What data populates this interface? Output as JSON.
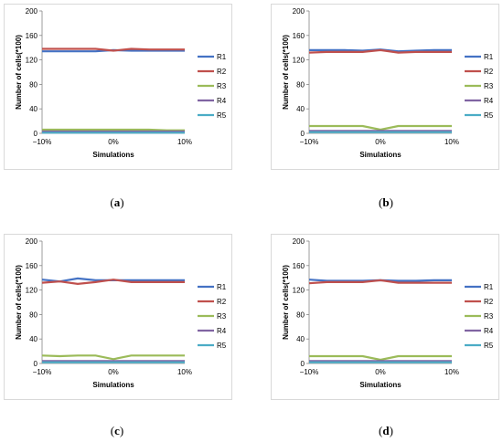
{
  "panels": [
    {
      "caption_letter": "a",
      "caption_open": "(",
      "caption_close": ")"
    },
    {
      "caption_letter": "b",
      "caption_open": "(",
      "caption_close": ")"
    },
    {
      "caption_letter": "c",
      "caption_open": "(",
      "caption_close": ")"
    },
    {
      "caption_letter": "d",
      "caption_open": "(",
      "caption_close": ")"
    }
  ],
  "chart_data": [
    {
      "type": "line",
      "title": "",
      "xlabel": "Simulations",
      "ylabel": "Number of cells(*100)",
      "x": [
        -10,
        -7.5,
        -5,
        -2.5,
        0,
        2.5,
        5,
        7.5,
        10
      ],
      "x_tick_labels": [
        "−10%",
        "0%",
        "10%"
      ],
      "y_ticks": [
        0,
        40,
        80,
        120,
        160,
        200
      ],
      "ylim": [
        0,
        200
      ],
      "grid": false,
      "legend": "right",
      "series": [
        {
          "name": "R1",
          "color": "#4472c4",
          "values": [
            134,
            134,
            134,
            134,
            136,
            135,
            135,
            135,
            135
          ]
        },
        {
          "name": "R2",
          "color": "#c0504d",
          "values": [
            138,
            138,
            138,
            138,
            135,
            138,
            137,
            137,
            137
          ]
        },
        {
          "name": "R3",
          "color": "#9bbb59",
          "values": [
            6,
            6,
            6,
            6,
            6,
            6,
            6,
            5,
            5
          ]
        },
        {
          "name": "R4",
          "color": "#8064a2",
          "values": [
            3,
            3,
            3,
            3,
            3,
            3,
            3,
            3,
            3
          ]
        },
        {
          "name": "R5",
          "color": "#4bacc6",
          "values": [
            1,
            1,
            1,
            1,
            1,
            1,
            1,
            1,
            1
          ]
        }
      ]
    },
    {
      "type": "line",
      "title": "",
      "xlabel": "Simulations",
      "ylabel": "Number of cells(*100)",
      "x": [
        -10,
        -7.5,
        -5,
        -2.5,
        0,
        2.5,
        5,
        7.5,
        10
      ],
      "x_tick_labels": [
        "−10%",
        "0%",
        "10%"
      ],
      "y_ticks": [
        0,
        40,
        80,
        120,
        160,
        200
      ],
      "ylim": [
        0,
        200
      ],
      "grid": false,
      "legend": "right",
      "series": [
        {
          "name": "R1",
          "color": "#4472c4",
          "values": [
            136,
            136,
            136,
            135,
            137,
            134,
            135,
            136,
            136
          ]
        },
        {
          "name": "R2",
          "color": "#c0504d",
          "values": [
            132,
            133,
            133,
            133,
            136,
            132,
            133,
            133,
            133
          ]
        },
        {
          "name": "R3",
          "color": "#9bbb59",
          "values": [
            12,
            12,
            12,
            12,
            6,
            12,
            12,
            12,
            12
          ]
        },
        {
          "name": "R4",
          "color": "#8064a2",
          "values": [
            4,
            4,
            4,
            4,
            4,
            4,
            4,
            4,
            4
          ]
        },
        {
          "name": "R5",
          "color": "#4bacc6",
          "values": [
            2,
            2,
            2,
            2,
            2,
            2,
            2,
            2,
            2
          ]
        }
      ]
    },
    {
      "type": "line",
      "title": "",
      "xlabel": "Simulations",
      "ylabel": "Number of cells(*100)",
      "x": [
        -10,
        -7.5,
        -5,
        -2.5,
        0,
        2.5,
        5,
        7.5,
        10
      ],
      "x_tick_labels": [
        "−10%",
        "0%",
        "10%"
      ],
      "y_ticks": [
        0,
        40,
        80,
        120,
        160,
        200
      ],
      "ylim": [
        0,
        200
      ],
      "grid": false,
      "legend": "right",
      "series": [
        {
          "name": "R1",
          "color": "#4472c4",
          "values": [
            137,
            134,
            139,
            136,
            136,
            136,
            136,
            136,
            136
          ]
        },
        {
          "name": "R2",
          "color": "#c0504d",
          "values": [
            132,
            134,
            130,
            133,
            137,
            133,
            133,
            133,
            133
          ]
        },
        {
          "name": "R3",
          "color": "#9bbb59",
          "values": [
            13,
            12,
            13,
            13,
            7,
            13,
            13,
            13,
            13
          ]
        },
        {
          "name": "R4",
          "color": "#8064a2",
          "values": [
            4,
            4,
            4,
            4,
            4,
            4,
            4,
            4,
            4
          ]
        },
        {
          "name": "R5",
          "color": "#4bacc6",
          "values": [
            2,
            2,
            2,
            2,
            2,
            2,
            2,
            2,
            2
          ]
        }
      ]
    },
    {
      "type": "line",
      "title": "",
      "xlabel": "Simulations",
      "ylabel": "Number of cells(*100)",
      "x": [
        -10,
        -7.5,
        -5,
        -2.5,
        0,
        2.5,
        5,
        7.5,
        10
      ],
      "x_tick_labels": [
        "−10%",
        "0%",
        "10%"
      ],
      "y_ticks": [
        0,
        40,
        80,
        120,
        160,
        200
      ],
      "ylim": [
        0,
        200
      ],
      "grid": false,
      "legend": "right",
      "series": [
        {
          "name": "R1",
          "color": "#4472c4",
          "values": [
            137,
            135,
            135,
            135,
            136,
            135,
            135,
            136,
            136
          ]
        },
        {
          "name": "R2",
          "color": "#c0504d",
          "values": [
            131,
            133,
            133,
            133,
            136,
            132,
            132,
            132,
            132
          ]
        },
        {
          "name": "R3",
          "color": "#9bbb59",
          "values": [
            12,
            12,
            12,
            12,
            6,
            12,
            12,
            12,
            12
          ]
        },
        {
          "name": "R4",
          "color": "#8064a2",
          "values": [
            4,
            4,
            4,
            4,
            4,
            4,
            4,
            4,
            4
          ]
        },
        {
          "name": "R5",
          "color": "#4bacc6",
          "values": [
            2,
            2,
            2,
            2,
            2,
            2,
            2,
            2,
            2
          ]
        }
      ]
    }
  ]
}
